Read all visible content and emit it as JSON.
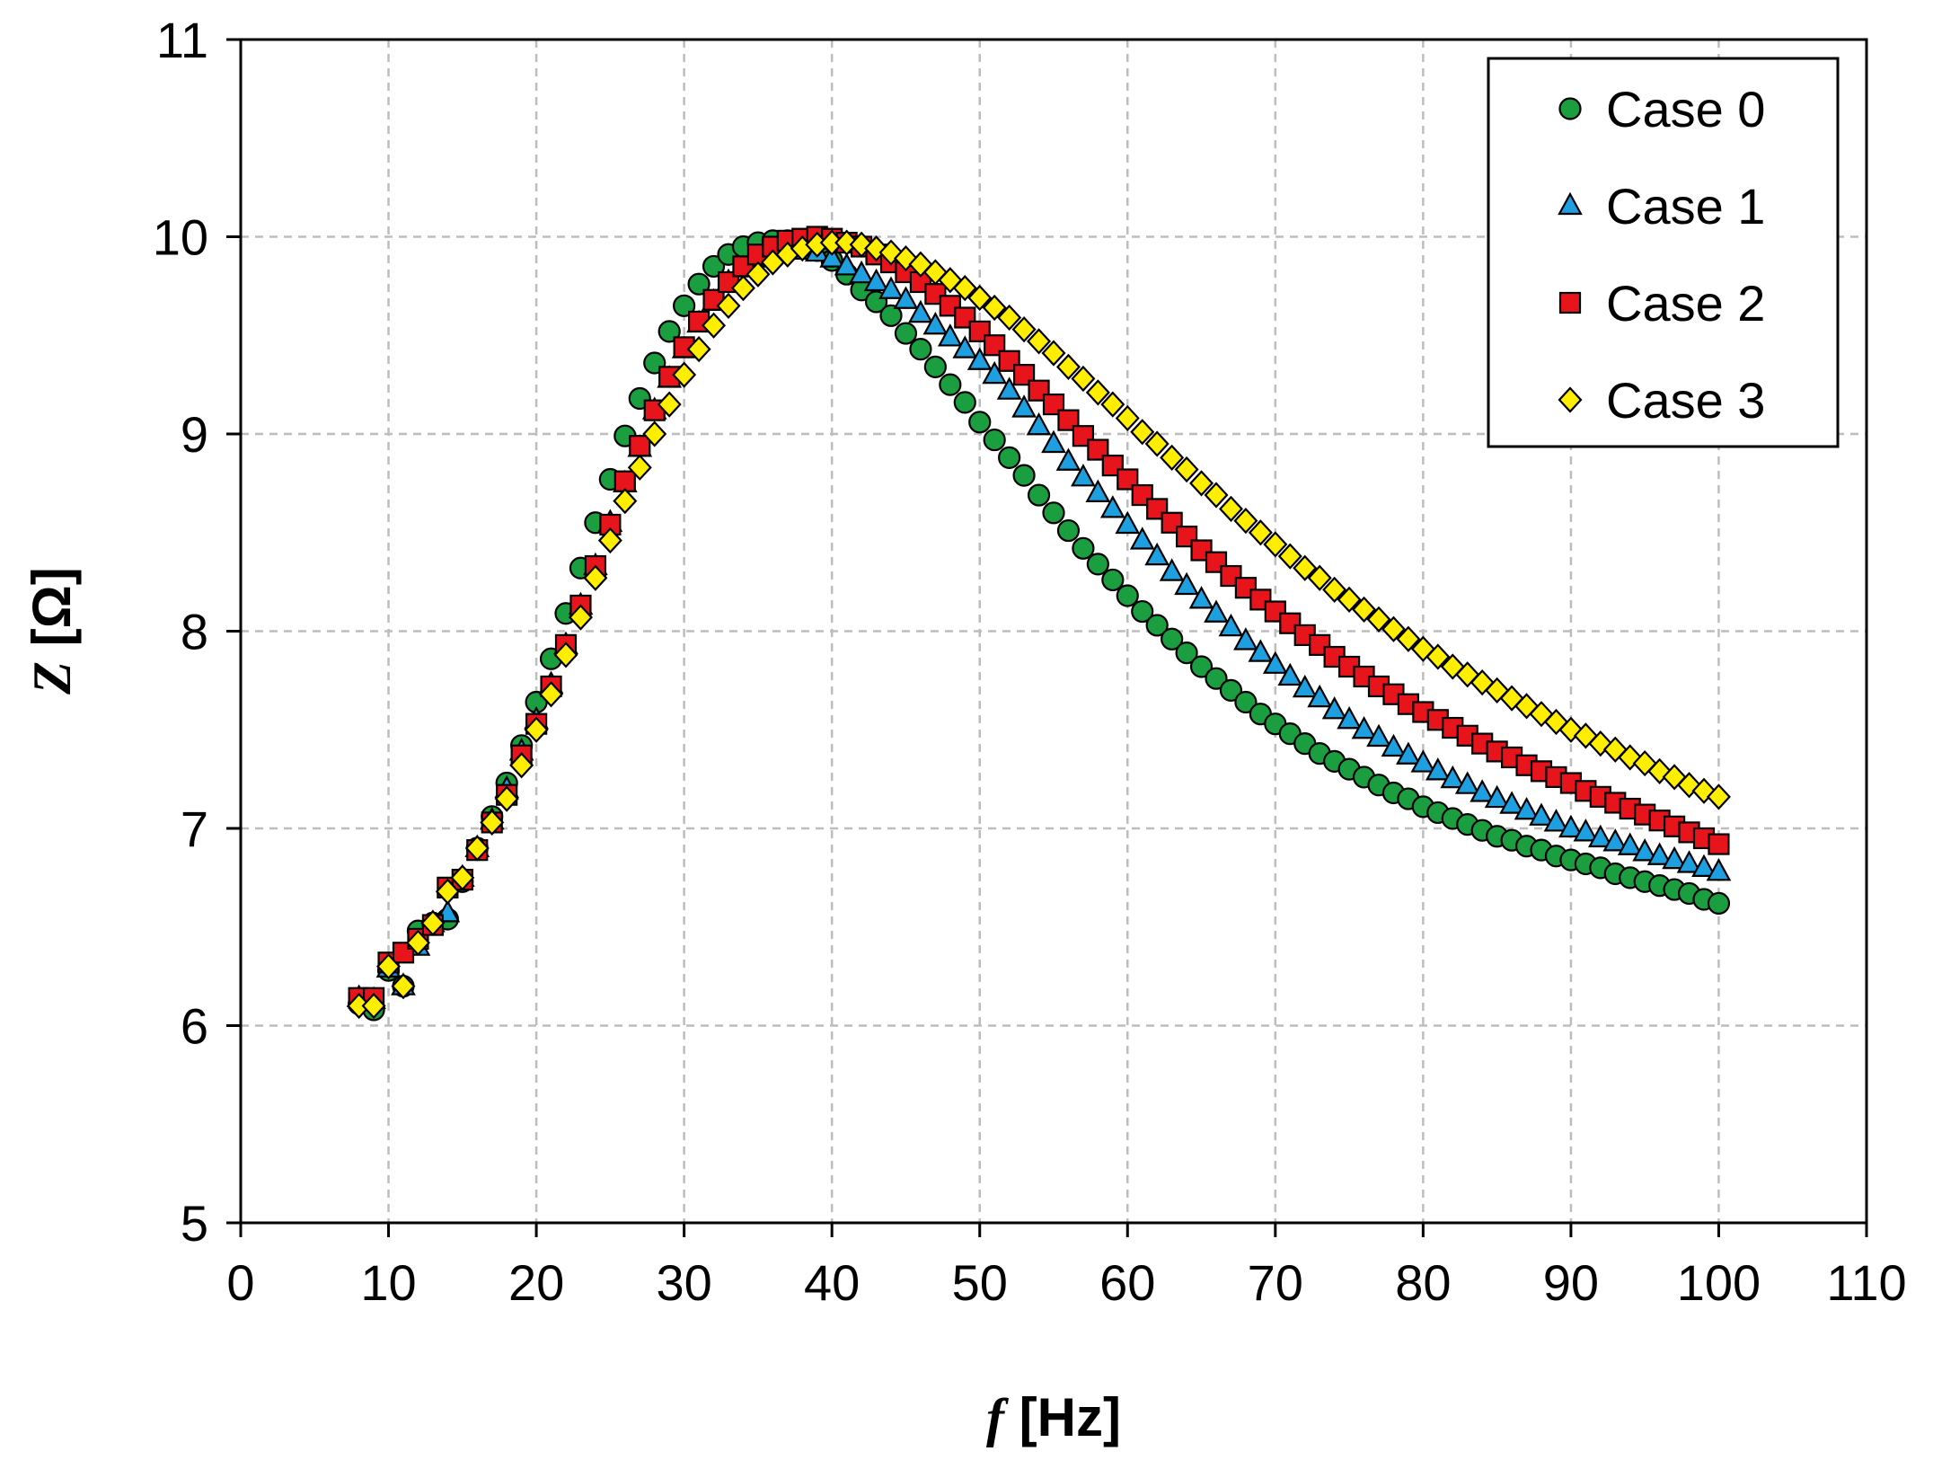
{
  "chart_data": {
    "type": "scatter",
    "title": "",
    "xlabel": {
      "var": "f",
      "unit": " [Hz]"
    },
    "ylabel": {
      "var": "Z",
      "unit": " [Ω]"
    },
    "xlim": [
      0,
      110
    ],
    "ylim": [
      5,
      11
    ],
    "xticks": [
      0,
      10,
      20,
      30,
      40,
      50,
      60,
      70,
      80,
      90,
      100,
      110
    ],
    "yticks": [
      5,
      6,
      7,
      8,
      9,
      10,
      11
    ],
    "grid": true,
    "legend_position": "top-right",
    "series": [
      {
        "name": "Case 0",
        "marker": "circle",
        "color": "#1a9e3f",
        "x": [
          8,
          9,
          10,
          11,
          12,
          13,
          14,
          15,
          16,
          17,
          18,
          19,
          20,
          21,
          22,
          23,
          24,
          25,
          26,
          27,
          28,
          29,
          30,
          31,
          32,
          33,
          34,
          35,
          36,
          37,
          38,
          39,
          40,
          41,
          42,
          43,
          44,
          45,
          46,
          47,
          48,
          49,
          50,
          51,
          52,
          53,
          54,
          55,
          56,
          57,
          58,
          59,
          60,
          61,
          62,
          63,
          64,
          65,
          66,
          67,
          68,
          69,
          70,
          71,
          72,
          73,
          74,
          75,
          76,
          77,
          78,
          79,
          80,
          81,
          82,
          83,
          84,
          85,
          86,
          87,
          88,
          89,
          90,
          91,
          92,
          93,
          94,
          95,
          96,
          97,
          98,
          99,
          100
        ],
        "y": [
          6.11,
          6.08,
          6.28,
          6.2,
          6.48,
          6.52,
          6.54,
          6.73,
          6.9,
          7.06,
          7.23,
          7.42,
          7.64,
          7.86,
          8.09,
          8.32,
          8.55,
          8.77,
          8.99,
          9.18,
          9.36,
          9.52,
          9.65,
          9.76,
          9.85,
          9.91,
          9.95,
          9.97,
          9.98,
          9.98,
          9.96,
          9.93,
          9.88,
          9.81,
          9.73,
          9.67,
          9.6,
          9.51,
          9.43,
          9.34,
          9.25,
          9.16,
          9.06,
          8.97,
          8.88,
          8.79,
          8.69,
          8.6,
          8.51,
          8.42,
          8.34,
          8.26,
          8.18,
          8.1,
          8.03,
          7.96,
          7.89,
          7.82,
          7.76,
          7.7,
          7.64,
          7.58,
          7.53,
          7.48,
          7.43,
          7.38,
          7.34,
          7.3,
          7.26,
          7.22,
          7.18,
          7.15,
          7.11,
          7.08,
          7.05,
          7.02,
          6.99,
          6.96,
          6.94,
          6.91,
          6.89,
          6.86,
          6.84,
          6.82,
          6.8,
          6.77,
          6.75,
          6.73,
          6.71,
          6.69,
          6.67,
          6.64,
          6.62
        ]
      },
      {
        "name": "Case 1",
        "marker": "triangle",
        "color": "#1e9fe0",
        "x": [
          8,
          9,
          10,
          11,
          12,
          13,
          14,
          15,
          16,
          17,
          18,
          19,
          20,
          21,
          22,
          23,
          24,
          25,
          26,
          27,
          28,
          29,
          30,
          31,
          32,
          33,
          34,
          35,
          36,
          37,
          38,
          39,
          40,
          41,
          42,
          43,
          44,
          45,
          46,
          47,
          48,
          49,
          50,
          51,
          52,
          53,
          54,
          55,
          56,
          57,
          58,
          59,
          60,
          61,
          62,
          63,
          64,
          65,
          66,
          67,
          68,
          69,
          70,
          71,
          72,
          73,
          74,
          75,
          76,
          77,
          78,
          79,
          80,
          81,
          82,
          83,
          84,
          85,
          86,
          87,
          88,
          89,
          90,
          91,
          92,
          93,
          94,
          95,
          96,
          97,
          98,
          99,
          100
        ],
        "y": [
          6.14,
          6.13,
          6.29,
          6.2,
          6.4,
          6.52,
          6.57,
          6.75,
          6.9,
          7.04,
          7.2,
          7.39,
          7.55,
          7.73,
          7.93,
          8.13,
          8.33,
          8.55,
          8.75,
          8.93,
          9.12,
          9.28,
          9.43,
          9.56,
          9.67,
          9.77,
          9.84,
          9.89,
          9.92,
          9.93,
          9.93,
          9.92,
          9.89,
          9.85,
          9.81,
          9.77,
          9.73,
          9.68,
          9.61,
          9.55,
          9.49,
          9.43,
          9.37,
          9.3,
          9.22,
          9.13,
          9.04,
          8.95,
          8.86,
          8.78,
          8.7,
          8.62,
          8.54,
          8.46,
          8.38,
          8.3,
          8.23,
          8.16,
          8.09,
          8.02,
          7.95,
          7.89,
          7.83,
          7.77,
          7.71,
          7.66,
          7.6,
          7.55,
          7.5,
          7.46,
          7.41,
          7.37,
          7.33,
          7.29,
          7.25,
          7.22,
          7.18,
          7.15,
          7.12,
          7.09,
          7.06,
          7.03,
          7,
          6.98,
          6.95,
          6.93,
          6.91,
          6.88,
          6.86,
          6.84,
          6.82,
          6.8,
          6.78
        ]
      },
      {
        "name": "Case 2",
        "marker": "square",
        "color": "#e8141b",
        "x": [
          8,
          9,
          10,
          11,
          12,
          13,
          14,
          15,
          16,
          17,
          18,
          19,
          20,
          21,
          22,
          23,
          24,
          25,
          26,
          27,
          28,
          29,
          30,
          31,
          32,
          33,
          34,
          35,
          36,
          37,
          38,
          39,
          40,
          41,
          42,
          43,
          44,
          45,
          46,
          47,
          48,
          49,
          50,
          51,
          52,
          53,
          54,
          55,
          56,
          57,
          58,
          59,
          60,
          61,
          62,
          63,
          64,
          65,
          66,
          67,
          68,
          69,
          70,
          71,
          72,
          73,
          74,
          75,
          76,
          77,
          78,
          79,
          80,
          81,
          82,
          83,
          84,
          85,
          86,
          87,
          88,
          89,
          90,
          91,
          92,
          93,
          94,
          95,
          96,
          97,
          98,
          99,
          100
        ],
        "y": [
          6.14,
          6.14,
          6.32,
          6.37,
          6.44,
          6.51,
          6.7,
          6.74,
          6.89,
          7.03,
          7.17,
          7.37,
          7.53,
          7.72,
          7.93,
          8.13,
          8.33,
          8.54,
          8.76,
          8.94,
          9.12,
          9.29,
          9.44,
          9.57,
          9.68,
          9.77,
          9.85,
          9.91,
          9.95,
          9.98,
          9.99,
          10,
          9.99,
          9.97,
          9.95,
          9.91,
          9.87,
          9.82,
          9.77,
          9.71,
          9.65,
          9.59,
          9.52,
          9.45,
          9.37,
          9.3,
          9.22,
          9.15,
          9.07,
          8.99,
          8.92,
          8.84,
          8.77,
          8.69,
          8.62,
          8.55,
          8.48,
          8.41,
          8.35,
          8.28,
          8.22,
          8.16,
          8.1,
          8.04,
          7.98,
          7.93,
          7.87,
          7.82,
          7.77,
          7.72,
          7.68,
          7.63,
          7.59,
          7.55,
          7.51,
          7.47,
          7.43,
          7.39,
          7.36,
          7.32,
          7.29,
          7.26,
          7.23,
          7.19,
          7.16,
          7.13,
          7.1,
          7.07,
          7.04,
          7.01,
          6.98,
          6.95,
          6.92
        ]
      },
      {
        "name": "Case 3",
        "marker": "diamond",
        "color": "#ffee00",
        "x": [
          8,
          9,
          10,
          11,
          12,
          13,
          14,
          15,
          16,
          17,
          18,
          19,
          20,
          21,
          22,
          23,
          24,
          25,
          26,
          27,
          28,
          29,
          30,
          31,
          32,
          33,
          34,
          35,
          36,
          37,
          38,
          39,
          40,
          41,
          42,
          43,
          44,
          45,
          46,
          47,
          48,
          49,
          50,
          51,
          52,
          53,
          54,
          55,
          56,
          57,
          58,
          59,
          60,
          61,
          62,
          63,
          64,
          65,
          66,
          67,
          68,
          69,
          70,
          71,
          72,
          73,
          74,
          75,
          76,
          77,
          78,
          79,
          80,
          81,
          82,
          83,
          84,
          85,
          86,
          87,
          88,
          89,
          90,
          91,
          92,
          93,
          94,
          95,
          96,
          97,
          98,
          99,
          100
        ],
        "y": [
          6.1,
          6.1,
          6.3,
          6.2,
          6.42,
          6.52,
          6.68,
          6.75,
          6.9,
          7.03,
          7.15,
          7.32,
          7.5,
          7.68,
          7.88,
          8.07,
          8.27,
          8.46,
          8.66,
          8.83,
          9,
          9.15,
          9.3,
          9.43,
          9.55,
          9.65,
          9.74,
          9.81,
          9.87,
          9.91,
          9.94,
          9.96,
          9.97,
          9.97,
          9.96,
          9.94,
          9.92,
          9.89,
          9.86,
          9.82,
          9.78,
          9.74,
          9.69,
          9.64,
          9.59,
          9.53,
          9.47,
          9.41,
          9.34,
          9.28,
          9.21,
          9.15,
          9.08,
          9.01,
          8.95,
          8.88,
          8.82,
          8.75,
          8.69,
          8.62,
          8.56,
          8.5,
          8.44,
          8.38,
          8.32,
          8.27,
          8.21,
          8.16,
          8.11,
          8.06,
          8.01,
          7.96,
          7.91,
          7.87,
          7.82,
          7.78,
          7.74,
          7.7,
          7.66,
          7.62,
          7.58,
          7.54,
          7.5,
          7.47,
          7.43,
          7.4,
          7.36,
          7.33,
          7.29,
          7.26,
          7.22,
          7.19,
          7.16
        ]
      }
    ]
  }
}
